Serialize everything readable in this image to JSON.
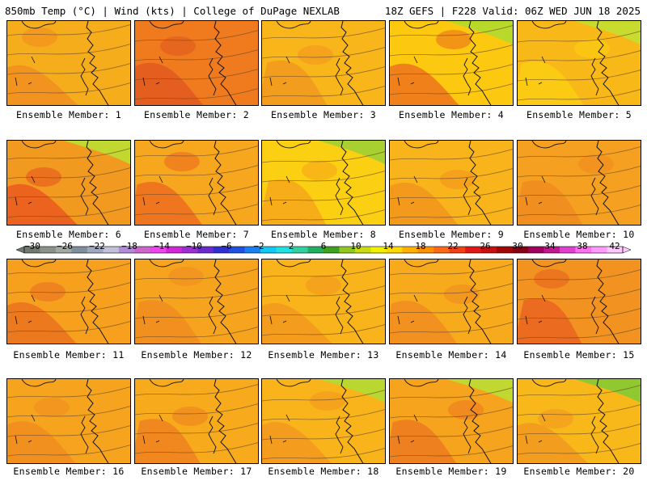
{
  "header": {
    "left": "850mb Temp (°C) | Wind (kts) | College of DuPage NEXLAB",
    "right": "18Z GEFS | F228 Valid: 06Z WED JUN 18 2025"
  },
  "colorbar": {
    "tick_labels": [
      "−30",
      "−26",
      "−22",
      "−18",
      "−14",
      "−10",
      "−6",
      "−2",
      "2",
      "6",
      "10",
      "14",
      "18",
      "22",
      "26",
      "30",
      "34",
      "38",
      "42"
    ],
    "colors": [
      "#6f7b6f",
      "#8a938a",
      "#a2a9a2",
      "#7f8f9f",
      "#a0a8c0",
      "#c0c0d8",
      "#b18cd6",
      "#cc66cc",
      "#ee44ee",
      "#d028d8",
      "#9b30d0",
      "#6a2ad0",
      "#3030d0",
      "#2050e0",
      "#1a80f0",
      "#10c8f0",
      "#20e0e0",
      "#30d0a0",
      "#20b060",
      "#40a020",
      "#90c820",
      "#c8dc10",
      "#f0f000",
      "#ffd800",
      "#ffb000",
      "#ff9000",
      "#ff6818",
      "#f04018",
      "#e01818",
      "#c81010",
      "#a00808",
      "#880018",
      "#a00060",
      "#c01890",
      "#e040d0",
      "#ff70f0",
      "#ff98ff",
      "#ffc8ff"
    ]
  },
  "panels": [
    {
      "label": "Ensemble Member: 1",
      "base": "#f6ad1c",
      "warm": "#f08a20",
      "cool": null
    },
    {
      "label": "Ensemble Member: 2",
      "base": "#f07a1e",
      "warm": "#e05520",
      "cool": null
    },
    {
      "label": "Ensemble Member: 3",
      "base": "#f8b61a",
      "warm": "#f29420",
      "cool": null
    },
    {
      "label": "Ensemble Member: 4",
      "base": "#fcc810",
      "warm": "#ec6a1e",
      "cool": "#b8d82a"
    },
    {
      "label": "Ensemble Member: 5",
      "base": "#f8b818",
      "warm": "#fcd010",
      "cool": "#c8dc30"
    },
    {
      "label": "Ensemble Member: 6",
      "base": "#f29a20",
      "warm": "#e8501e",
      "cool": "#c0d830"
    },
    {
      "label": "Ensemble Member: 7",
      "base": "#f7a71e",
      "warm": "#ec6620",
      "cool": null
    },
    {
      "label": "Ensemble Member: 8",
      "base": "#fcd012",
      "warm": "#f5a21c",
      "cool": "#a8d030"
    },
    {
      "label": "Ensemble Member: 9",
      "base": "#f8b41a",
      "warm": "#f2921e",
      "cool": null
    },
    {
      "label": "Ensemble Member: 10",
      "base": "#f5a020",
      "warm": "#ef8820",
      "cool": null
    },
    {
      "label": "Ensemble Member: 11",
      "base": "#f6a01e",
      "warm": "#ea6c20",
      "cool": null
    },
    {
      "label": "Ensemble Member: 12",
      "base": "#f6a41e",
      "warm": "#f08a20",
      "cool": null
    },
    {
      "label": "Ensemble Member: 13",
      "base": "#f8b41a",
      "warm": "#f29420",
      "cool": null
    },
    {
      "label": "Ensemble Member: 14",
      "base": "#f7aa1c",
      "warm": "#f08820",
      "cool": null
    },
    {
      "label": "Ensemble Member: 15",
      "base": "#f29220",
      "warm": "#e85e20",
      "cool": null
    },
    {
      "label": "Ensemble Member: 16",
      "base": "#f6a41e",
      "warm": "#f08a20",
      "cool": null
    },
    {
      "label": "Ensemble Member: 17",
      "base": "#f7aa1c",
      "warm": "#ed7c20",
      "cool": null
    },
    {
      "label": "Ensemble Member: 18",
      "base": "#f8b41a",
      "warm": "#f29420",
      "cool": "#b8d830"
    },
    {
      "label": "Ensemble Member: 19",
      "base": "#f6a41e",
      "warm": "#ec7420",
      "cool": "#c0d830"
    },
    {
      "label": "Ensemble Member: 20",
      "base": "#f8b81a",
      "warm": "#f29420",
      "cool": "#90c830"
    }
  ]
}
